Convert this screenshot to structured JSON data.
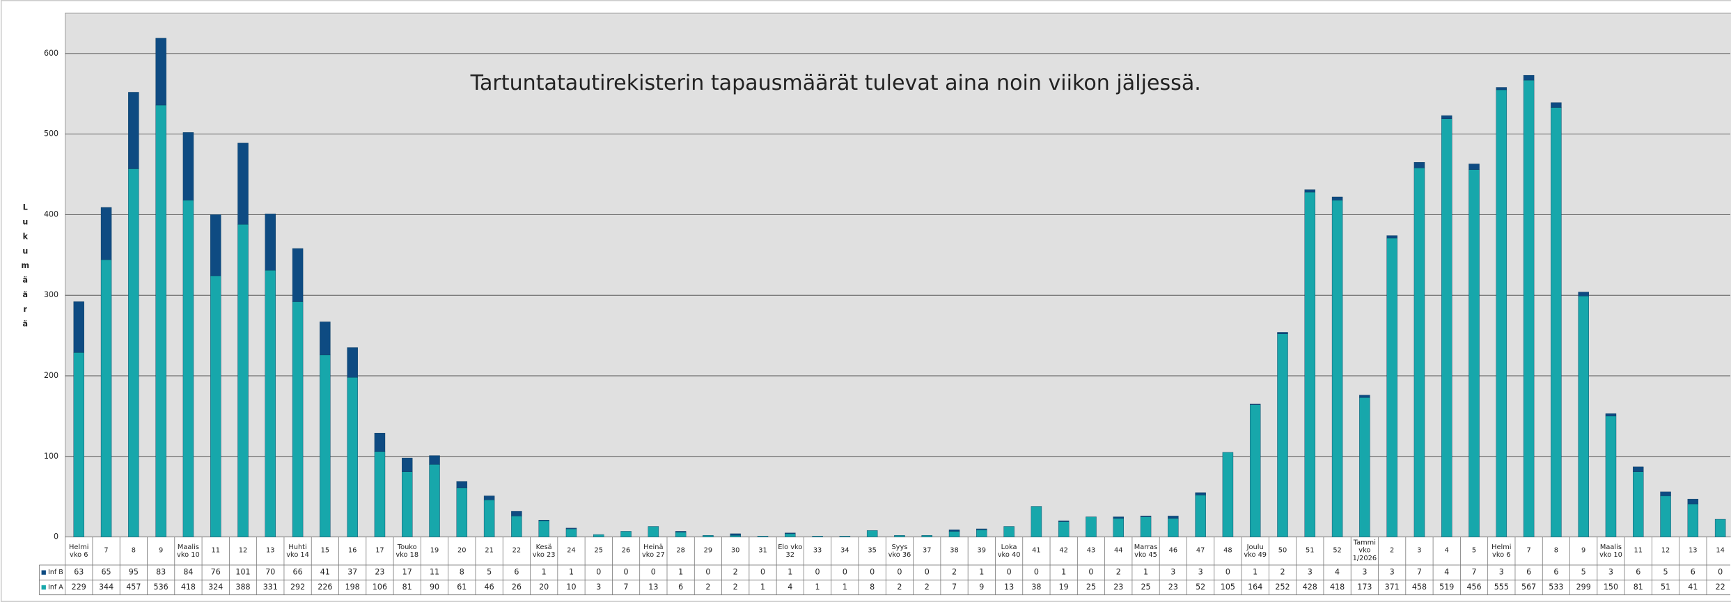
{
  "chart_data": {
    "type": "stacked_bar",
    "annotation": "Tartuntatautirekisterin tapausmäärät tulevat aina noin viikon jäljessä.",
    "y_label": "Lukumäärä",
    "categories": [
      "Helmi\nvko 6",
      "7",
      "8",
      "9",
      "Maalis\nvko 10",
      "11",
      "12",
      "13",
      "Huhti\nvko 14",
      "15",
      "16",
      "17",
      "Touko\nvko 18",
      "19",
      "20",
      "21",
      "22",
      "Kesä\nvko 23",
      "24",
      "25",
      "26",
      "Heinä\nvko 27",
      "28",
      "29",
      "30",
      "31",
      "Elo vko\n32",
      "33",
      "34",
      "35",
      "Syys\nvko 36",
      "37",
      "38",
      "39",
      "Loka\nvko 40",
      "41",
      "42",
      "43",
      "44",
      "Marras\nvko 45",
      "46",
      "47",
      "48",
      "Joulu\nvko 49",
      "50",
      "51",
      "52",
      "Tammi\nvko\n1/2026",
      "2",
      "3",
      "4",
      "5",
      "Helmi\nvko 6",
      "7",
      "8",
      "9",
      "Maalis\nvko 10",
      "11",
      "12",
      "13",
      "14"
    ],
    "series": [
      {
        "name": "Inf A",
        "color": "#17a7ab",
        "values": [
          229,
          344,
          457,
          536,
          418,
          324,
          388,
          331,
          292,
          226,
          198,
          106,
          81,
          90,
          61,
          46,
          26,
          20,
          10,
          3,
          7,
          13,
          6,
          2,
          2,
          1,
          4,
          1,
          1,
          8,
          2,
          2,
          7,
          9,
          13,
          38,
          19,
          25,
          23,
          25,
          23,
          52,
          105,
          164,
          252,
          428,
          418,
          173,
          371,
          458,
          519,
          456,
          555,
          567,
          533,
          299,
          150,
          81,
          51,
          41,
          22
        ]
      },
      {
        "name": "Inf B",
        "color": "#0e4b82",
        "values": [
          63,
          65,
          95,
          83,
          84,
          76,
          101,
          70,
          66,
          41,
          37,
          23,
          17,
          11,
          8,
          5,
          6,
          1,
          1,
          0,
          0,
          0,
          1,
          0,
          2,
          0,
          1,
          0,
          0,
          0,
          0,
          0,
          2,
          1,
          0,
          0,
          1,
          0,
          2,
          1,
          3,
          3,
          0,
          1,
          2,
          3,
          4,
          3,
          3,
          7,
          4,
          7,
          3,
          6,
          6,
          5,
          3,
          6,
          5,
          6,
          0
        ]
      }
    ],
    "ylim": [
      0,
      650
    ],
    "yticks": [
      0,
      100,
      200,
      300,
      400,
      500,
      600
    ],
    "grid": true
  }
}
